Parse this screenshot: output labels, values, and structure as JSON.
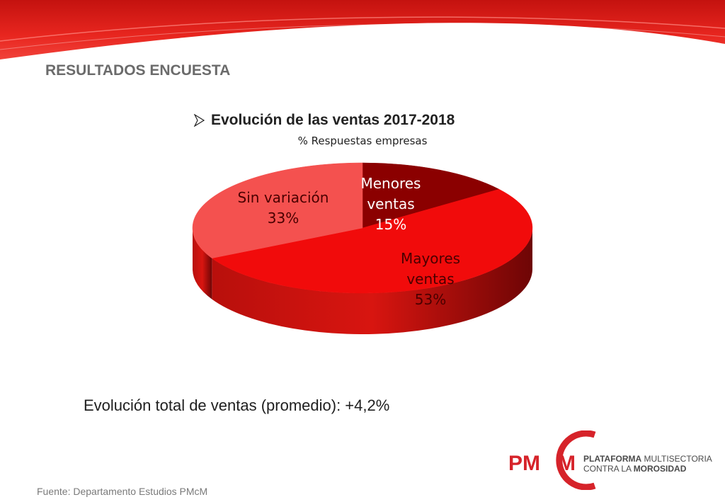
{
  "header": {
    "section_title": "RESULTADOS ENCUESTA",
    "accent_color": "#e3201b"
  },
  "chart_title": "Evolución de las ventas 2017-2018",
  "chart_data": {
    "type": "pie",
    "title": "Evolución de las ventas 2017-2018",
    "subtitle": "% Respuestas empresas",
    "slices": [
      {
        "label_line1": "Menores",
        "label_line2": "ventas",
        "value_label": "15%",
        "value": 15,
        "color": "#8b0000"
      },
      {
        "label_line1": "Mayores",
        "label_line2": "ventas",
        "value_label": "53%",
        "value": 53,
        "color": "#f10b0b"
      },
      {
        "label_line1": "Sin variación",
        "label_line2": "",
        "value_label": "33%",
        "value": 33,
        "color": "#f4514f"
      }
    ],
    "style": "3d"
  },
  "summary": {
    "text": "Evolución total de ventas (promedio): +4,2%"
  },
  "footer": {
    "source": "Fuente: Departamento Estudios PMcM"
  },
  "logo": {
    "mark_text": "PM",
    "mark_text_2": "M",
    "line1_bold": "PLATAFORMA",
    "line1_rest": " MULTISECTORIAL",
    "line2_rest": "CONTRA LA ",
    "line2_bold": "MOROSIDAD",
    "color": "#d6232a"
  }
}
